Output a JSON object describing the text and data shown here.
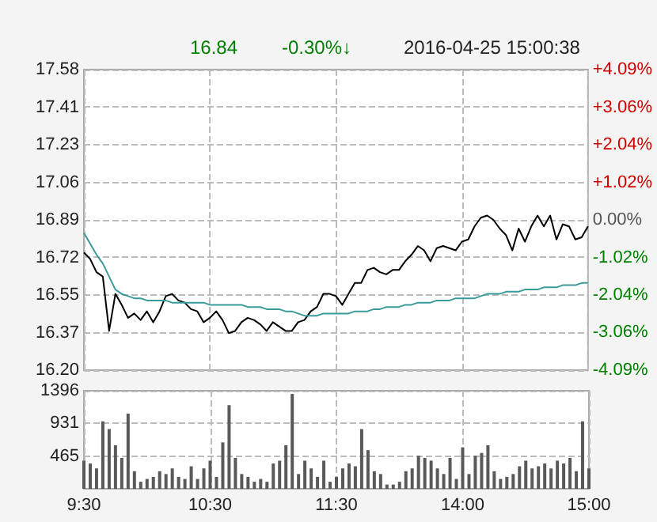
{
  "chart_data": [
    {
      "type": "line",
      "annotations": [
        "16.84",
        "-0.30%↓",
        "2016-04-25 15:00:38"
      ],
      "categories": [
        null,
        null,
        null,
        null,
        null,
        null,
        null,
        null,
        null,
        null,
        null,
        null,
        null,
        null,
        null,
        null,
        null,
        null,
        null,
        null,
        null,
        null,
        null,
        null,
        null,
        null,
        null,
        null,
        null,
        null,
        null,
        null,
        null,
        null,
        null,
        null,
        null,
        null,
        null,
        null,
        null,
        null,
        null,
        null,
        null,
        null,
        null,
        null,
        null,
        null,
        null,
        null,
        null,
        null,
        null,
        null,
        null,
        null,
        null,
        null,
        null,
        null,
        null,
        null,
        null,
        null,
        null,
        null,
        null,
        null,
        null,
        null,
        null,
        null,
        null,
        null,
        null,
        null,
        null,
        null,
        null
      ],
      "series": [
        {
          "color": "#000000",
          "values": [
            16.74,
            16.71,
            16.65,
            16.63,
            16.38,
            16.55,
            16.5,
            16.44,
            16.46,
            16.43,
            16.47,
            16.42,
            16.47,
            16.54,
            16.55,
            16.52,
            16.51,
            16.48,
            16.47,
            16.42,
            16.44,
            16.47,
            16.43,
            16.37,
            16.38,
            16.42,
            16.44,
            16.43,
            16.41,
            16.38,
            16.42,
            16.4,
            16.38,
            16.38,
            16.42,
            16.43,
            16.47,
            16.49,
            16.55,
            16.55,
            16.54,
            16.5,
            16.55,
            16.6,
            16.6,
            16.66,
            16.67,
            16.65,
            16.64,
            16.66,
            16.66,
            16.7,
            16.73,
            16.77,
            16.75,
            16.7,
            16.76,
            16.77,
            16.76,
            16.75,
            16.79,
            16.8,
            16.86,
            16.9,
            16.91,
            16.89,
            16.85,
            16.82,
            16.75,
            16.85,
            16.79,
            16.86,
            16.91,
            16.86,
            16.91,
            16.8,
            16.87,
            16.86,
            16.8,
            16.81,
            16.86
          ]
        },
        {
          "color": "#3a9a9a",
          "values": [
            16.83,
            16.78,
            16.73,
            16.69,
            16.63,
            16.57,
            16.55,
            16.54,
            16.53,
            16.53,
            16.52,
            16.52,
            16.52,
            16.52,
            16.51,
            16.51,
            16.51,
            16.51,
            16.51,
            16.51,
            16.5,
            16.5,
            16.5,
            16.5,
            16.5,
            16.5,
            16.49,
            16.49,
            16.49,
            16.48,
            16.48,
            16.48,
            16.47,
            16.47,
            16.46,
            16.45,
            16.45,
            16.45,
            16.46,
            16.46,
            16.46,
            16.46,
            16.46,
            16.47,
            16.47,
            16.47,
            16.48,
            16.48,
            16.49,
            16.49,
            16.49,
            16.5,
            16.5,
            16.51,
            16.51,
            16.51,
            16.52,
            16.52,
            16.52,
            16.53,
            16.53,
            16.53,
            16.53,
            16.54,
            16.55,
            16.55,
            16.55,
            16.56,
            16.56,
            16.56,
            16.57,
            16.57,
            16.57,
            16.58,
            16.58,
            16.58,
            16.59,
            16.59,
            16.59,
            16.6,
            16.6
          ]
        }
      ],
      "ylim": [
        16.2,
        17.58
      ],
      "yticks": [
        {
          "value": 16.2,
          "label": "16.20"
        },
        {
          "value": 16.3725,
          "label": "16.37"
        },
        {
          "value": 16.545,
          "label": "16.55"
        },
        {
          "value": 16.7175,
          "label": "16.72"
        },
        {
          "value": 16.89,
          "label": "16.89"
        },
        {
          "value": 17.0625,
          "label": "17.06"
        },
        {
          "value": 17.235,
          "label": "17.23"
        },
        {
          "value": 17.4075,
          "label": "17.41"
        },
        {
          "value": 17.58,
          "label": "17.58"
        }
      ],
      "y2lim": [
        -4.09,
        4.09
      ],
      "y2ticks": [
        {
          "value": -4.09,
          "label": "-4.09%"
        },
        {
          "value": -3.06,
          "label": "-3.06%"
        },
        {
          "value": -2.045,
          "label": "-2.04%"
        },
        {
          "value": -1.0225,
          "label": "-1.02%"
        },
        {
          "value": 0,
          "label": "0.00%"
        },
        {
          "value": 1.0225,
          "label": "+1.02%"
        },
        {
          "value": 2.045,
          "label": "+2.04%"
        },
        {
          "value": 3.06,
          "label": "+3.06%"
        },
        {
          "value": 4.09,
          "label": "+4.09%"
        }
      ],
      "grid": true,
      "tick_labels": "y",
      "line_style": "solid"
    },
    {
      "type": "bar",
      "categories": [
        "9:30",
        null,
        null,
        null,
        null,
        null,
        null,
        null,
        null,
        null,
        null,
        null,
        null,
        null,
        null,
        null,
        null,
        null,
        null,
        null,
        "10:30",
        null,
        null,
        null,
        null,
        null,
        null,
        null,
        null,
        null,
        null,
        null,
        null,
        null,
        null,
        null,
        null,
        null,
        null,
        null,
        "11:30",
        null,
        null,
        null,
        null,
        null,
        null,
        null,
        null,
        null,
        null,
        null,
        null,
        null,
        null,
        null,
        null,
        null,
        null,
        null,
        "14:00",
        null,
        null,
        null,
        null,
        null,
        null,
        null,
        null,
        null,
        null,
        null,
        null,
        null,
        null,
        null,
        null,
        null,
        null,
        null,
        "15:00"
      ],
      "color": "#595959",
      "values": [
        400,
        360,
        290,
        960,
        850,
        620,
        440,
        1070,
        250,
        100,
        140,
        170,
        250,
        210,
        290,
        170,
        140,
        320,
        140,
        290,
        400,
        170,
        660,
        1190,
        440,
        210,
        170,
        100,
        140,
        100,
        360,
        400,
        620,
        1350,
        210,
        400,
        290,
        170,
        400,
        100,
        170,
        290,
        360,
        320,
        850,
        550,
        250,
        210,
        60,
        60,
        100,
        250,
        290,
        470,
        440,
        400,
        290,
        210,
        440,
        140,
        590,
        210,
        470,
        510,
        620,
        250,
        140,
        170,
        210,
        320,
        400,
        290,
        320,
        360,
        290,
        400,
        360,
        440,
        250,
        960,
        290
      ],
      "ylim": [
        0,
        1396
      ],
      "yticks": [
        465,
        931,
        1396
      ],
      "grid": true
    }
  ]
}
